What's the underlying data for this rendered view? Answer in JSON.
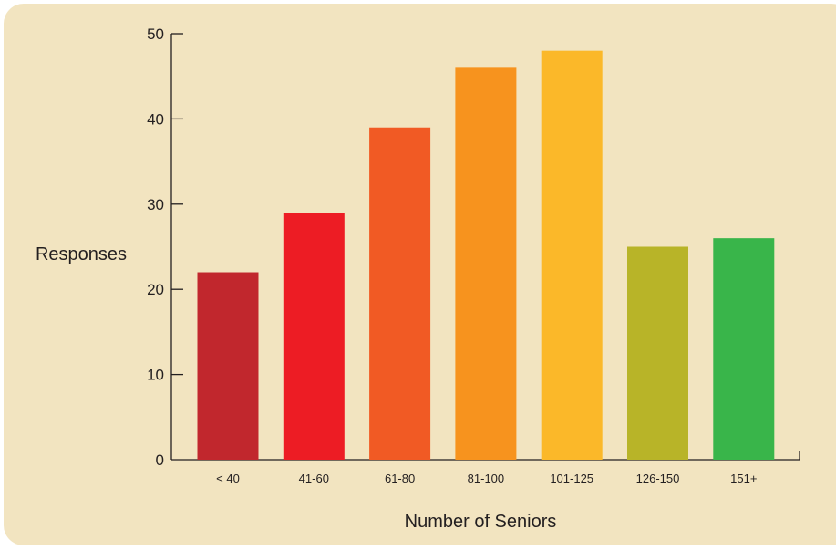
{
  "colors": {
    "panel_background": "#f2e4c0",
    "axis": "#231f20",
    "text": "#231f20"
  },
  "chart_data": {
    "type": "bar",
    "title": "",
    "xlabel": "Number of Seniors",
    "ylabel": "Responses",
    "ylim": [
      0,
      50
    ],
    "yticks": [
      "0",
      "10",
      "20",
      "30",
      "40",
      "50"
    ],
    "grid": false,
    "legend": "none",
    "categories": [
      "< 40",
      "41-60",
      "61-80",
      "81-100",
      "101-125",
      "126-150",
      "151+"
    ],
    "values": [
      22,
      29,
      39,
      46,
      48,
      25,
      26
    ],
    "bar_colors": [
      "#c1272d",
      "#ed1c24",
      "#f15a24",
      "#f7931e",
      "#fbb829",
      "#b8b428",
      "#39b54a"
    ]
  }
}
